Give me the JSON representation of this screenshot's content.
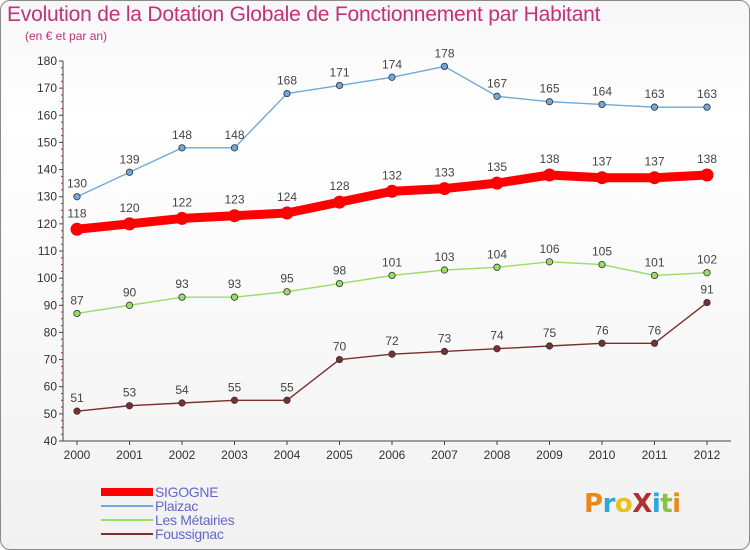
{
  "title": "Evolution de la Dotation Globale de Fonctionnement par Habitant",
  "subtitle": "(en € et par an)",
  "logo": {
    "text": "ProXiti",
    "letter_colors": [
      "#e88a1a",
      "#2ea8dc",
      "#e8c21a",
      "#b03030",
      "#2ea8dc",
      "#8bc34a",
      "#e88a1a"
    ]
  },
  "colors": {
    "title": "#c2317a",
    "axis": "#444444",
    "gridline": "#cc2222",
    "legend_text": "#6666cc",
    "background": "#f7f7f7"
  },
  "chart_data": {
    "type": "line",
    "title": "Evolution de la Dotation Globale de Fonctionnement par Habitant",
    "subtitle": "(en € et par an)",
    "xlabel": "",
    "ylabel": "",
    "x": [
      "2000",
      "2001",
      "2002",
      "2003",
      "2004",
      "2005",
      "2006",
      "2007",
      "2008",
      "2009",
      "2010",
      "2011",
      "2012"
    ],
    "ylim": [
      40,
      180
    ],
    "yticks": [
      40,
      50,
      60,
      70,
      80,
      90,
      100,
      110,
      120,
      130,
      140,
      150,
      160,
      170,
      180
    ],
    "legend_position": "bottom-left",
    "series": [
      {
        "name": "Plaizac",
        "color": "#6fa8dc",
        "emphasis": false,
        "values": [
          130,
          139,
          148,
          148,
          168,
          171,
          174,
          178,
          167,
          165,
          164,
          163,
          163
        ]
      },
      {
        "name": "Les Métairies",
        "color": "#99dd66",
        "emphasis": false,
        "values": [
          87,
          90,
          93,
          93,
          95,
          98,
          101,
          103,
          104,
          106,
          105,
          101,
          102
        ]
      },
      {
        "name": "Foussignac",
        "color": "#7a3030",
        "emphasis": false,
        "values": [
          51,
          53,
          54,
          55,
          55,
          70,
          72,
          73,
          74,
          75,
          76,
          76,
          91
        ]
      },
      {
        "name": "SIGOGNE",
        "color": "#ff0000",
        "emphasis": true,
        "values": [
          118,
          120,
          122,
          123,
          124,
          128,
          132,
          133,
          135,
          138,
          137,
          137,
          138
        ]
      }
    ],
    "legend_order": [
      "SIGOGNE",
      "Plaizac",
      "Les Métairies",
      "Foussignac"
    ]
  }
}
